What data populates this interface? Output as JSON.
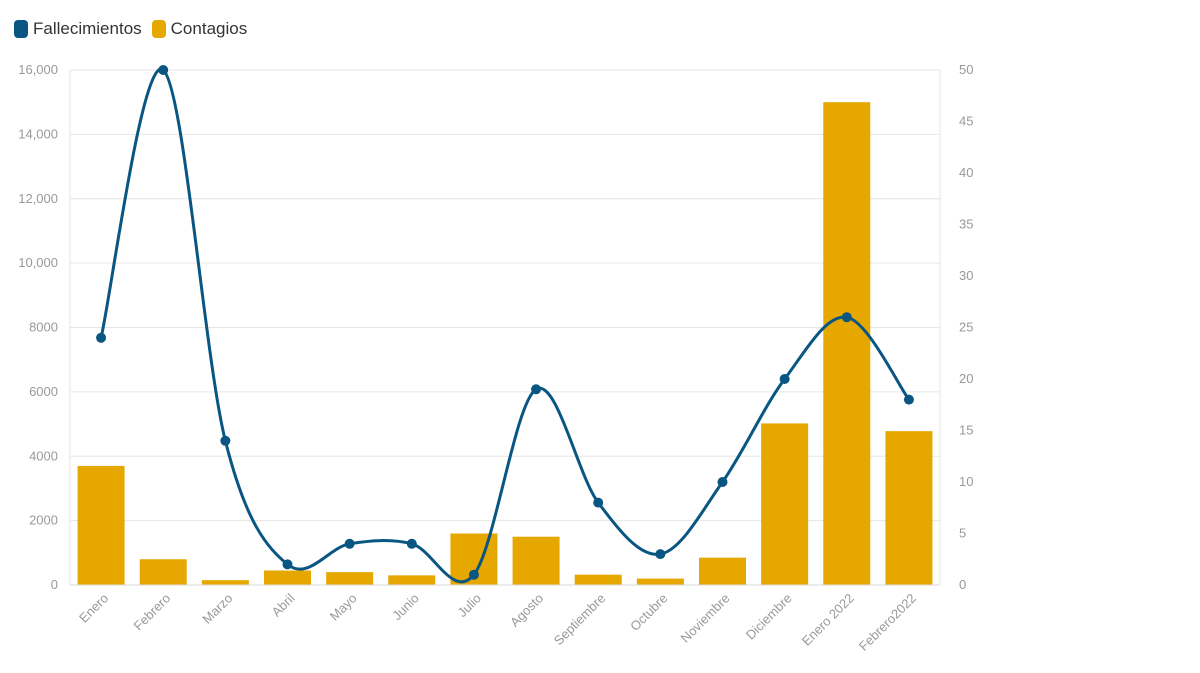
{
  "legend": [
    {
      "label": "Fallecimientos",
      "color": "#0a5682"
    },
    {
      "label": "Contagios",
      "color": "#e6a700"
    }
  ],
  "chart_data": {
    "type": "bar",
    "title": "",
    "xlabel": "",
    "ylabel": "",
    "categories": [
      "Enero",
      "Febrero",
      "Marzo",
      "Abril",
      "Mayo",
      "Junio",
      "Julio",
      "Agosto",
      "Septiembre",
      "Octubre",
      "Noviembre",
      "Diciembre",
      "Enero 2022",
      "Febrero2022"
    ],
    "series": [
      {
        "name": "Contagios",
        "type": "bar",
        "axis": "left",
        "color": "#e6a700",
        "values": [
          3700,
          800,
          150,
          450,
          400,
          300,
          1600,
          1500,
          320,
          200,
          850,
          5020,
          15000,
          4780
        ]
      },
      {
        "name": "Fallecimientos",
        "type": "line",
        "axis": "right",
        "color": "#0a5682",
        "values": [
          24,
          50,
          14,
          2,
          4,
          4,
          1,
          19,
          8,
          3,
          10,
          20,
          26,
          18
        ]
      }
    ],
    "ylim_left": [
      0,
      16000
    ],
    "ylim_right": [
      0,
      50
    ],
    "left_ticks": [
      "0",
      "2000",
      "4000",
      "6000",
      "8000",
      "10,000",
      "12,000",
      "14,000",
      "16,000"
    ],
    "right_ticks": [
      "0",
      "5",
      "10",
      "15",
      "20",
      "25",
      "30",
      "35",
      "40",
      "45",
      "50"
    ],
    "grid": true,
    "legend_position": "top-left"
  }
}
